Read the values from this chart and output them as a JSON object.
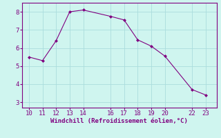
{
  "x": [
    10,
    11,
    12,
    13,
    14,
    16,
    17,
    18,
    19,
    20,
    22,
    23
  ],
  "y": [
    5.5,
    5.3,
    6.4,
    8.0,
    8.1,
    7.75,
    7.55,
    6.45,
    6.1,
    5.55,
    3.7,
    3.4
  ],
  "line_color": "#800080",
  "marker": "D",
  "marker_size": 2.0,
  "bg_color": "#cff5ef",
  "grid_color": "#aadddd",
  "xlabel": "Windchill (Refroidissement éolien,°C)",
  "xlabel_color": "#800080",
  "tick_color": "#800080",
  "spine_color": "#800080",
  "xlim": [
    9.5,
    23.8
  ],
  "ylim": [
    2.7,
    8.5
  ],
  "xticks": [
    10,
    11,
    12,
    13,
    14,
    16,
    17,
    18,
    19,
    20,
    22,
    23
  ],
  "yticks": [
    3,
    4,
    5,
    6,
    7,
    8
  ],
  "xlabel_fontsize": 6.5,
  "tick_fontsize": 6.5
}
